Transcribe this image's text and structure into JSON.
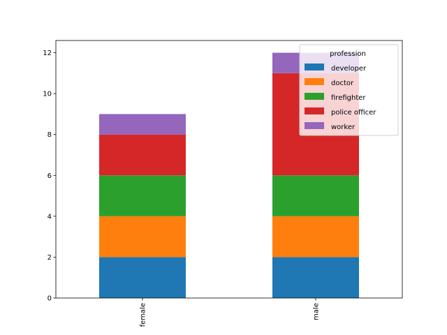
{
  "chart_data": {
    "type": "bar",
    "stacked": true,
    "categories": [
      "female",
      "male"
    ],
    "series": [
      {
        "name": "developer",
        "color": "#1f77b4",
        "values": [
          2,
          2
        ]
      },
      {
        "name": "doctor",
        "color": "#ff7f0e",
        "values": [
          2,
          2
        ]
      },
      {
        "name": "firefighter",
        "color": "#2ca02c",
        "values": [
          2,
          2
        ]
      },
      {
        "name": "police officer",
        "color": "#d62728",
        "values": [
          2,
          5
        ]
      },
      {
        "name": "worker",
        "color": "#9467bd",
        "values": [
          1,
          1
        ]
      }
    ],
    "yticks": [
      "0",
      "2",
      "4",
      "6",
      "8",
      "10",
      "12"
    ],
    "ylim": [
      0,
      12.6
    ],
    "legend": {
      "title": "profession",
      "placement": "top-right"
    },
    "grid": false
  }
}
